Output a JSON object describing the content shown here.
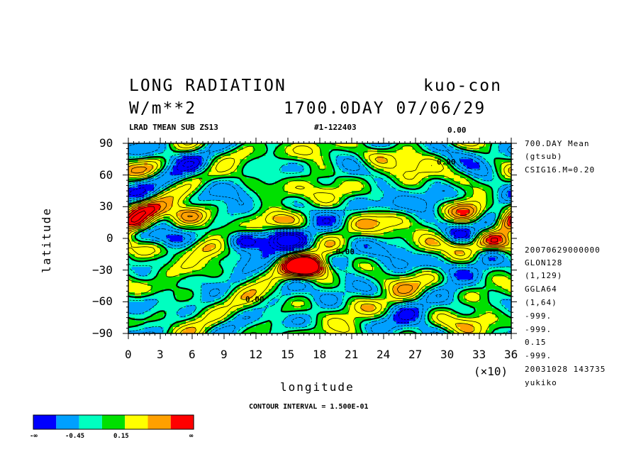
{
  "header": {
    "title_left": "LONG RADIATION",
    "title_right": "kuo-con",
    "units": "W/m**2",
    "time": "1700.0DAY 07/06/29",
    "subtitle_left": "LRAD TMEAN SUB ZS13",
    "subtitle_right": "#1-122403"
  },
  "side_info": {
    "top": [
      "700.DAY Mean",
      "(gtsub)",
      "CSIG16.M=0.20"
    ],
    "bottom": [
      "20070629000000",
      "GLON128",
      "(1,129)",
      "GGLA64",
      "(1,64)",
      "-999.",
      "-999.",
      "0.15",
      "-999.",
      "20031028 143735",
      "yukiko"
    ]
  },
  "contour_label": "CONTOUR INTERVAL = 1.500E-01",
  "contour_value_labels": [
    "0.00",
    "0.00",
    "0.00",
    "0.00",
    "0.00",
    "0.00"
  ],
  "colorbar": {
    "colors": [
      "#0000ff",
      "#00a0ff",
      "#00ffc0",
      "#00e000",
      "#ffff00",
      "#ffa000",
      "#ff0000"
    ],
    "labels": [
      "-∞",
      "-0.45",
      "0.15",
      "∞"
    ]
  },
  "chart_data": {
    "type": "heatmap",
    "title": "LONG RADIATION",
    "xlabel": "longitude",
    "ylabel": "latitude",
    "x_multiplier_label": "(×10)",
    "xlim": [
      0,
      360
    ],
    "ylim": [
      -90,
      90
    ],
    "xticks": [
      "0",
      "3",
      "6",
      "9",
      "12",
      "15",
      "18",
      "21",
      "24",
      "27",
      "30",
      "33",
      "36"
    ],
    "yticks": [
      "90",
      "60",
      "30",
      "0",
      "−30",
      "−60",
      "−90"
    ],
    "contour_interval": 0.15,
    "background_value": 0.0,
    "anomalies": [
      {
        "lon": 165,
        "lat": -28,
        "value": 0.95
      },
      {
        "lon": 170,
        "lat": -26,
        "value": 0.5
      },
      {
        "lon": 55,
        "lat": 22,
        "value": 0.7
      },
      {
        "lon": 18,
        "lat": 28,
        "value": 0.55
      },
      {
        "lon": 5,
        "lat": 15,
        "value": 0.7
      },
      {
        "lon": 355,
        "lat": 12,
        "value": 0.6
      },
      {
        "lon": 345,
        "lat": -3,
        "value": 0.65
      },
      {
        "lon": 320,
        "lat": 25,
        "value": 0.5
      },
      {
        "lon": 300,
        "lat": -3,
        "value": 0.45
      },
      {
        "lon": 280,
        "lat": -8,
        "value": 0.35
      },
      {
        "lon": 250,
        "lat": 17,
        "value": 0.35
      },
      {
        "lon": 140,
        "lat": 20,
        "value": 0.35
      },
      {
        "lon": 75,
        "lat": -8,
        "value": 0.35
      },
      {
        "lon": 25,
        "lat": -12,
        "value": 0.35
      },
      {
        "lon": 55,
        "lat": -30,
        "value": 0.3
      },
      {
        "lon": 180,
        "lat": 63,
        "value": 0.3
      },
      {
        "lon": 230,
        "lat": 75,
        "value": 0.3
      },
      {
        "lon": 225,
        "lat": -40,
        "value": 0.25
      },
      {
        "lon": 330,
        "lat": -55,
        "value": 0.2
      },
      {
        "lon": 310,
        "lat": 55,
        "value": 0.25
      },
      {
        "lon": 115,
        "lat": -82,
        "value": 0.2
      },
      {
        "lon": 175,
        "lat": -45,
        "value": 0.2
      },
      {
        "lon": 110,
        "lat": -2,
        "value": -0.85
      },
      {
        "lon": 145,
        "lat": 1,
        "value": -0.7
      },
      {
        "lon": 40,
        "lat": 0,
        "value": -0.6
      },
      {
        "lon": 310,
        "lat": 0,
        "value": -0.55
      },
      {
        "lon": 345,
        "lat": 12,
        "value": -0.5
      },
      {
        "lon": 295,
        "lat": -28,
        "value": -0.35
      },
      {
        "lon": 200,
        "lat": -20,
        "value": -0.3
      },
      {
        "lon": 20,
        "lat": -38,
        "value": -0.35
      },
      {
        "lon": 70,
        "lat": 70,
        "value": -0.3
      },
      {
        "lon": 40,
        "lat": 80,
        "value": -0.3
      },
      {
        "lon": 245,
        "lat": 30,
        "value": -0.3
      },
      {
        "lon": 290,
        "lat": 35,
        "value": -0.3
      },
      {
        "lon": 345,
        "lat": 40,
        "value": -0.3
      },
      {
        "lon": 100,
        "lat": 45,
        "value": -0.25
      },
      {
        "lon": 10,
        "lat": 55,
        "value": -0.25
      },
      {
        "lon": 310,
        "lat": -70,
        "value": -0.2
      },
      {
        "lon": 140,
        "lat": -60,
        "value": -0.2
      },
      {
        "lon": 230,
        "lat": -55,
        "value": -0.25
      },
      {
        "lon": 340,
        "lat": -15,
        "value": -0.3
      },
      {
        "lon": 260,
        "lat": -10,
        "value": -0.3
      }
    ]
  }
}
